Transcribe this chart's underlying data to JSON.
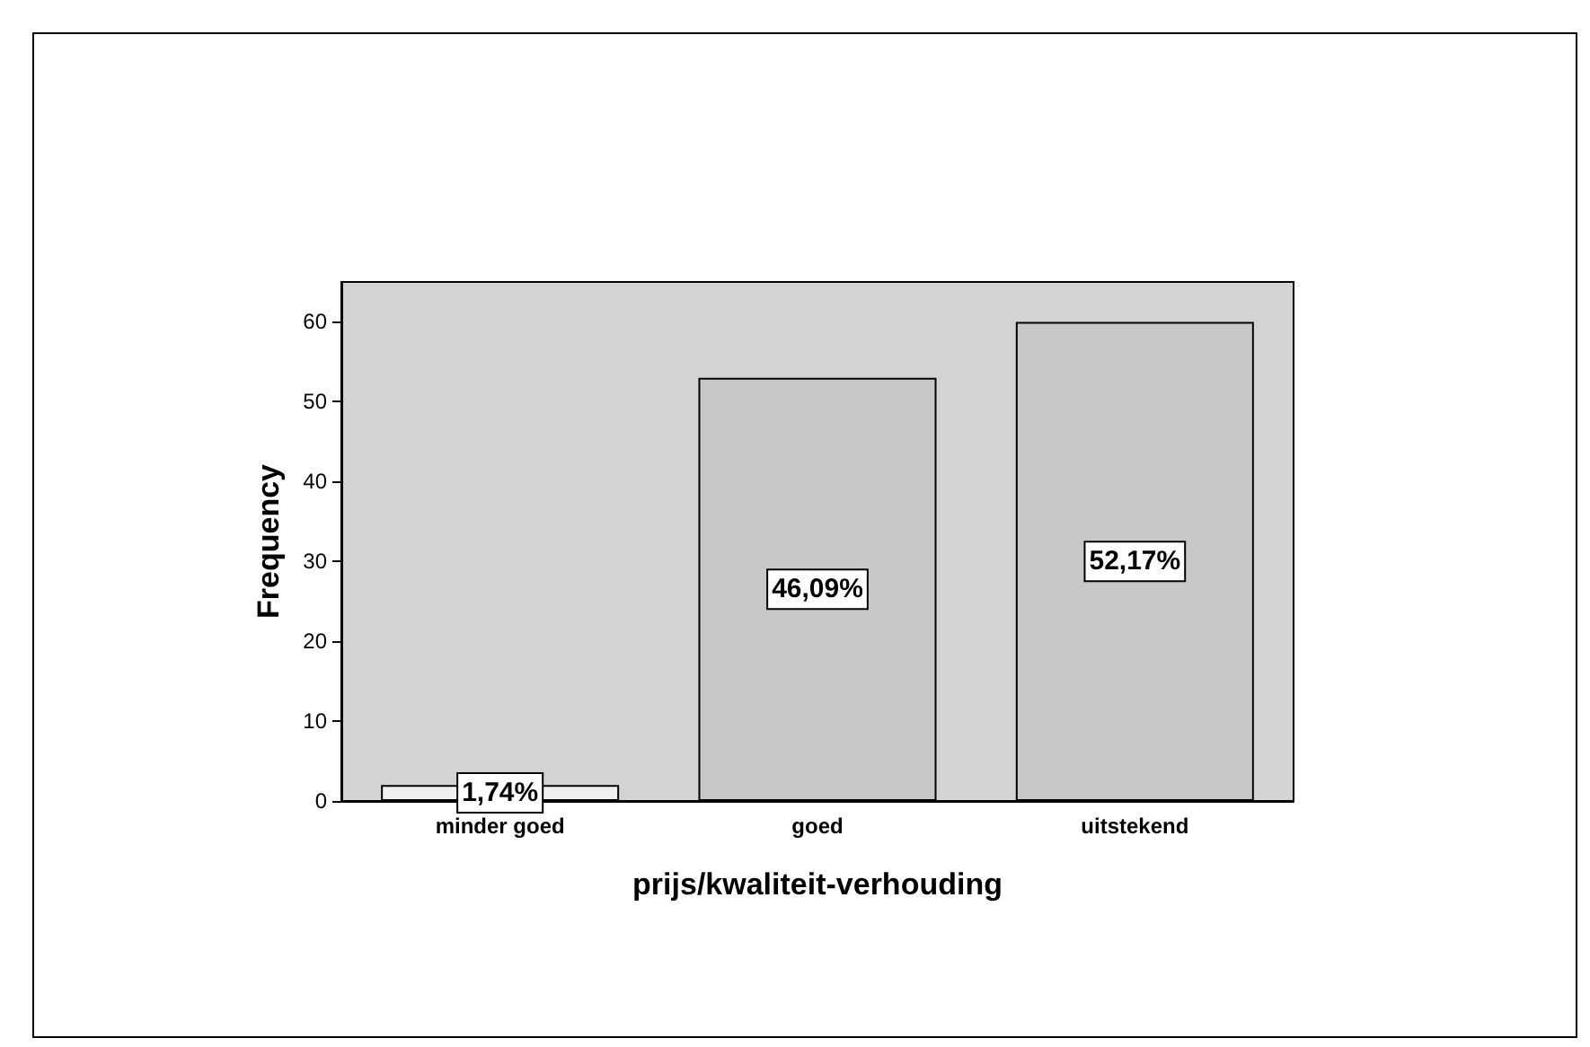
{
  "chart_data": {
    "type": "bar",
    "xlabel": "prijs/kwaliteit-verhouding",
    "ylabel": "Frequency",
    "categories": [
      "minder goed",
      "goed",
      "uitstekend"
    ],
    "values": [
      2,
      53,
      60
    ],
    "annotations": [
      "1,74%",
      "46,09%",
      "52,17%"
    ],
    "colors": [
      "#f0f0f0",
      "#c8c8c8",
      "#c8c8c8"
    ],
    "ylim": [
      0,
      65
    ],
    "yticks": [
      0,
      10,
      20,
      30,
      40,
      50,
      60
    ],
    "grid": false
  }
}
